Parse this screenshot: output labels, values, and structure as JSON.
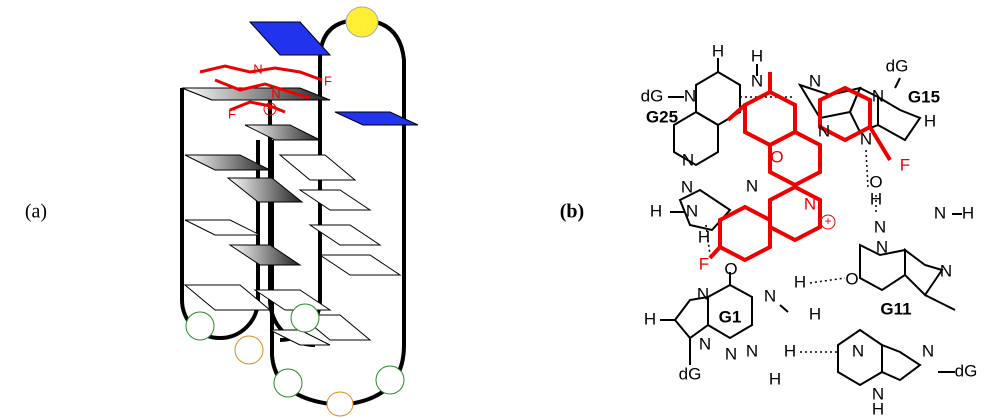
{
  "panel_a": {
    "label": "(a)",
    "ligand_labels": [
      "N",
      "F",
      "N",
      "+",
      "F"
    ]
  },
  "panel_b": {
    "label": "(b)",
    "residues": [
      "G25",
      "G15",
      "G11",
      "G1"
    ],
    "atoms": [
      "H",
      "dG",
      "N",
      "H",
      "N",
      "N",
      "dG",
      "N",
      "H",
      "N",
      "N",
      "O",
      "F",
      "O",
      "H",
      "N",
      "N",
      "N",
      "H",
      "N",
      "N",
      "+",
      "N",
      "H",
      "H",
      "N",
      "F",
      "O",
      "N",
      "N",
      "O",
      "H",
      "N",
      "N",
      "H",
      "N",
      "H",
      "N",
      "dG",
      "N",
      "N",
      "H",
      "N",
      "H",
      "dG",
      "N",
      "H"
    ]
  }
}
